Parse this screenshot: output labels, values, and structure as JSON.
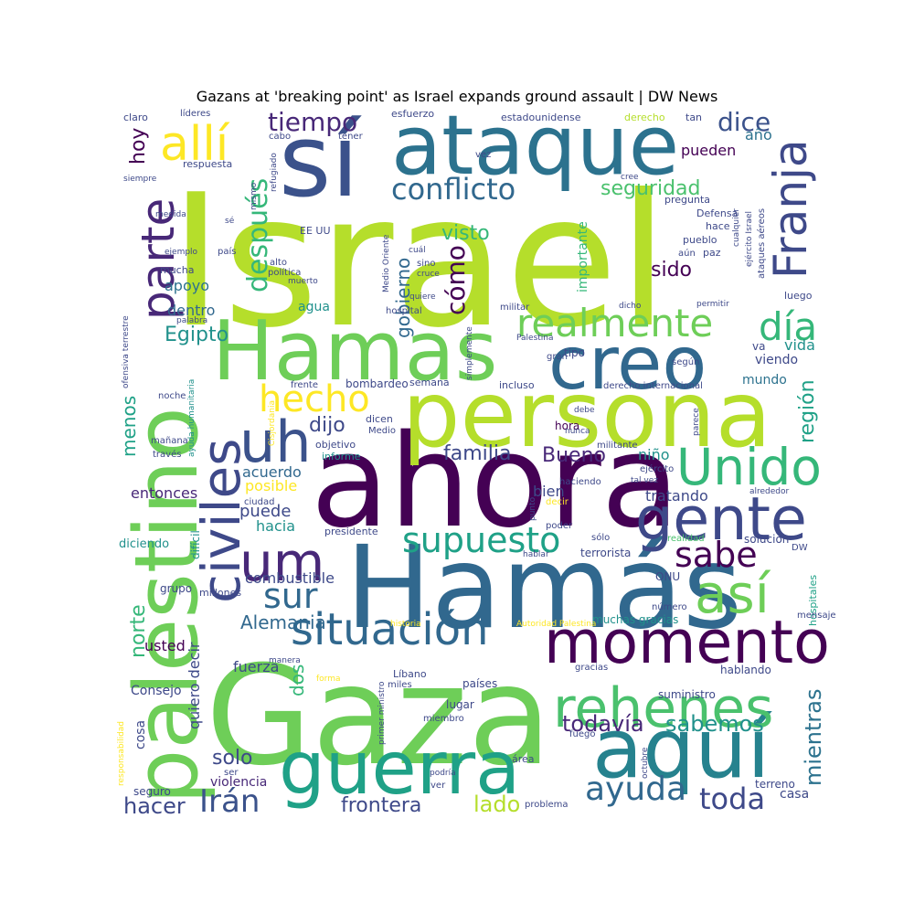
{
  "title": "Gazans at 'breaking point' as Israel expands ground assault | DW News",
  "words": [
    {
      "text": "Israel",
      "color": "#b5de2b"
    },
    {
      "text": "ahora",
      "color": "#440154"
    },
    {
      "text": "Gaza",
      "color": "#6ece58"
    },
    {
      "text": "Hamás",
      "color": "#31688e"
    },
    {
      "text": "persona",
      "color": "#b5de2b"
    },
    {
      "text": "palestino",
      "color": "#6ece58"
    },
    {
      "text": "sí",
      "color": "#3b528b"
    },
    {
      "text": "ataque",
      "color": "#2c728e"
    },
    {
      "text": "Hamas",
      "color": "#6ece58"
    },
    {
      "text": "guerra",
      "color": "#1fa187"
    },
    {
      "text": "aquí",
      "color": "#26828e"
    },
    {
      "text": "creo",
      "color": "#31688e"
    },
    {
      "text": "gente",
      "color": "#3e4989"
    },
    {
      "text": "momento",
      "color": "#440154"
    },
    {
      "text": "civiles",
      "color": "#3e4989"
    },
    {
      "text": "rehenes",
      "color": "#4ac16d"
    },
    {
      "text": "uh",
      "color": "#3b528b"
    },
    {
      "text": "um",
      "color": "#482878"
    },
    {
      "text": "Unido",
      "color": "#35b779"
    },
    {
      "text": "Franja",
      "color": "#3e4989"
    },
    {
      "text": "situación",
      "color": "#31688e"
    },
    {
      "text": "parte",
      "color": "#482878"
    },
    {
      "text": "así",
      "color": "#6ece58"
    },
    {
      "text": "allí",
      "color": "#fde725"
    },
    {
      "text": "realmente",
      "color": "#6ece58"
    },
    {
      "text": "día",
      "color": "#35b779"
    },
    {
      "text": "supuesto",
      "color": "#1fa187"
    },
    {
      "text": "hecho",
      "color": "#fde725"
    },
    {
      "text": "sabe",
      "color": "#440154"
    },
    {
      "text": "Irán",
      "color": "#3b528b"
    },
    {
      "text": "ayuda",
      "color": "#31688e"
    },
    {
      "text": "toda",
      "color": "#3e4989"
    },
    {
      "text": "sur",
      "color": "#31688e"
    },
    {
      "text": "conflicto",
      "color": "#31688e"
    },
    {
      "text": "tiempo",
      "color": "#482878"
    },
    {
      "text": "dice",
      "color": "#3b528b"
    },
    {
      "text": "después",
      "color": "#35b779"
    },
    {
      "text": "cómo",
      "color": "#440154"
    },
    {
      "text": "todavía",
      "color": "#482878"
    },
    {
      "text": "sabemos",
      "color": "#21918c"
    },
    {
      "text": "mientras",
      "color": "#2c728e"
    },
    {
      "text": "frontera",
      "color": "#3e4989"
    },
    {
      "text": "hacer",
      "color": "#3e4989"
    },
    {
      "text": "solo",
      "color": "#3e4989"
    },
    {
      "text": "lado",
      "color": "#b5de2b"
    },
    {
      "text": "familia",
      "color": "#3e4989"
    },
    {
      "text": "Bueno",
      "color": "#482878"
    },
    {
      "text": "dijo",
      "color": "#3e4989"
    },
    {
      "text": "seguridad",
      "color": "#4ac16d"
    },
    {
      "text": "Egipto",
      "color": "#21918c"
    },
    {
      "text": "región",
      "color": "#1fa187"
    },
    {
      "text": "norte",
      "color": "#35b779"
    },
    {
      "text": "Alemania",
      "color": "#31688e"
    },
    {
      "text": "hoy",
      "color": "#440154"
    },
    {
      "text": "gobierno",
      "color": "#31688e"
    },
    {
      "text": "visto",
      "color": "#35b779"
    },
    {
      "text": "sido",
      "color": "#440154"
    },
    {
      "text": "pueden",
      "color": "#440154"
    },
    {
      "text": "año",
      "color": "#2c728e"
    },
    {
      "text": "menos",
      "color": "#1fa187"
    },
    {
      "text": "dos",
      "color": "#35b779"
    },
    {
      "text": "posible",
      "color": "#fde725"
    },
    {
      "text": "acuerdo",
      "color": "#31688e"
    },
    {
      "text": "puede",
      "color": "#3e4989"
    },
    {
      "text": "hacia",
      "color": "#21918c"
    },
    {
      "text": "entonces",
      "color": "#482878"
    },
    {
      "text": "combustible",
      "color": "#3e4989"
    },
    {
      "text": "niño",
      "color": "#21918c"
    },
    {
      "text": "bien",
      "color": "#3e4989"
    },
    {
      "text": "tratando",
      "color": "#3e4989"
    },
    {
      "text": "fuerza",
      "color": "#3e4989"
    },
    {
      "text": "quiero decir",
      "color": "#3e4989"
    },
    {
      "text": "apoyo",
      "color": "#2c728e"
    },
    {
      "text": "dentro",
      "color": "#31688e"
    },
    {
      "text": "usted",
      "color": "#440154"
    },
    {
      "text": "Consejo",
      "color": "#3e4989"
    },
    {
      "text": "cosa",
      "color": "#3e4989"
    },
    {
      "text": "violencia",
      "color": "#482878"
    },
    {
      "text": "seguro",
      "color": "#3e4989"
    },
    {
      "text": "vida",
      "color": "#21918c"
    },
    {
      "text": "mundo",
      "color": "#2c728e"
    },
    {
      "text": "viendo",
      "color": "#3e4989"
    },
    {
      "text": "va",
      "color": "#3e4989"
    },
    {
      "text": "hora",
      "color": "#440154"
    },
    {
      "text": "agua",
      "color": "#21918c"
    },
    {
      "text": "importante",
      "color": "#35b779"
    },
    {
      "text": "lugar",
      "color": "#3e4989"
    },
    {
      "text": "países",
      "color": "#3e4989"
    },
    {
      "text": "hablando",
      "color": "#3e4989"
    },
    {
      "text": "suministro",
      "color": "#3e4989"
    },
    {
      "text": "terrorista",
      "color": "#3e4989"
    },
    {
      "text": "solución",
      "color": "#3e4989"
    },
    {
      "text": "casa",
      "color": "#3e4989"
    },
    {
      "text": "terreno",
      "color": "#3e4989"
    },
    {
      "text": "ONU",
      "color": "#3e4989"
    },
    {
      "text": "hospitales",
      "color": "#1fa187"
    },
    {
      "text": "diciendo",
      "color": "#21918c"
    },
    {
      "text": "difícil",
      "color": "#21918c"
    },
    {
      "text": "grupo",
      "color": "#3e4989"
    },
    {
      "text": "millones",
      "color": "#3e4989"
    },
    {
      "text": "noche",
      "color": "#3e4989"
    },
    {
      "text": "ayuda humanitaria",
      "color": "#21918c"
    },
    {
      "text": "Cisjordania",
      "color": "#fde725"
    },
    {
      "text": "frente",
      "color": "#3e4989"
    },
    {
      "text": "bombardeo",
      "color": "#3e4989"
    },
    {
      "text": "semana",
      "color": "#3e4989"
    },
    {
      "text": "incluso",
      "color": "#3e4989"
    },
    {
      "text": "derecho internacional",
      "color": "#3e4989"
    },
    {
      "text": "dicen",
      "color": "#3e4989"
    },
    {
      "text": "objetivo",
      "color": "#3e4989"
    },
    {
      "text": "informe",
      "color": "#21918c"
    },
    {
      "text": "Medio",
      "color": "#3e4989"
    },
    {
      "text": "presidente",
      "color": "#3e4989"
    },
    {
      "text": "ciudad",
      "color": "#3e4989"
    },
    {
      "text": "haciendo",
      "color": "#3e4989"
    },
    {
      "text": "decir",
      "color": "#fde725"
    },
    {
      "text": "punto",
      "color": "#3e4989"
    },
    {
      "text": "poder",
      "color": "#3e4989"
    },
    {
      "text": "realidad",
      "color": "#4ac16d"
    },
    {
      "text": "hablar",
      "color": "#3e4989"
    },
    {
      "text": "número",
      "color": "#3e4989"
    },
    {
      "text": "muchas gracias",
      "color": "#21918c"
    },
    {
      "text": "mensaje",
      "color": "#3e4989"
    },
    {
      "text": "historia",
      "color": "#fde725"
    },
    {
      "text": "Autoridad Palestina",
      "color": "#fde725"
    },
    {
      "text": "manera",
      "color": "#3e4989"
    },
    {
      "text": "Líbano",
      "color": "#3e4989"
    },
    {
      "text": "forma",
      "color": "#fde725"
    },
    {
      "text": "miles",
      "color": "#3e4989"
    },
    {
      "text": "primer ministro",
      "color": "#3e4989"
    },
    {
      "text": "miembro",
      "color": "#3e4989"
    },
    {
      "text": "gracias",
      "color": "#3e4989"
    },
    {
      "text": "fuego",
      "color": "#3e4989"
    },
    {
      "text": "área",
      "color": "#3e4989"
    },
    {
      "text": "octubre",
      "color": "#3e4989"
    },
    {
      "text": "podría",
      "color": "#3e4989"
    },
    {
      "text": "ver",
      "color": "#3e4989"
    },
    {
      "text": "problema",
      "color": "#3e4989"
    },
    {
      "text": "responsabilidad",
      "color": "#fde725"
    },
    {
      "text": "ser",
      "color": "#3e4989"
    },
    {
      "text": "mañana",
      "color": "#3e4989"
    },
    {
      "text": "través",
      "color": "#3e4989"
    },
    {
      "text": "palabra",
      "color": "#3e4989"
    },
    {
      "text": "ofensiva terrestre",
      "color": "#3e4989"
    },
    {
      "text": "claro",
      "color": "#3e4989"
    },
    {
      "text": "líderes",
      "color": "#3e4989"
    },
    {
      "text": "esfuerzo",
      "color": "#3e4989"
    },
    {
      "text": "estadounidense",
      "color": "#3e4989"
    },
    {
      "text": "derecho",
      "color": "#b5de2b"
    },
    {
      "text": "tan",
      "color": "#3e4989"
    },
    {
      "text": "cabo",
      "color": "#3e4989"
    },
    {
      "text": "tener",
      "color": "#3e4989"
    },
    {
      "text": "vez",
      "color": "#3e4989"
    },
    {
      "text": "respuesta",
      "color": "#3e4989"
    },
    {
      "text": "refugiado",
      "color": "#3e4989"
    },
    {
      "text": "siempre",
      "color": "#3e4989"
    },
    {
      "text": "mismo",
      "color": "#3e4989"
    },
    {
      "text": "medida",
      "color": "#3e4989"
    },
    {
      "text": "sé",
      "color": "#3e4989"
    },
    {
      "text": "país",
      "color": "#3e4989"
    },
    {
      "text": "ejemplo",
      "color": "#3e4989"
    },
    {
      "text": "mucha",
      "color": "#3e4989"
    },
    {
      "text": "alto",
      "color": "#3e4989"
    },
    {
      "text": "política",
      "color": "#3e4989"
    },
    {
      "text": "muerto",
      "color": "#3e4989"
    },
    {
      "text": "EE UU",
      "color": "#3e4989"
    },
    {
      "text": "Medio Oriente",
      "color": "#3e4989"
    },
    {
      "text": "cuál",
      "color": "#3e4989"
    },
    {
      "text": "sino",
      "color": "#3e4989"
    },
    {
      "text": "cruce",
      "color": "#3e4989"
    },
    {
      "text": "quiere",
      "color": "#3e4989"
    },
    {
      "text": "pregunta",
      "color": "#3e4989"
    },
    {
      "text": "Defensa",
      "color": "#3e4989"
    },
    {
      "text": "hace",
      "color": "#3e4989"
    },
    {
      "text": "pueblo",
      "color": "#3e4989"
    },
    {
      "text": "aún",
      "color": "#3e4989"
    },
    {
      "text": "paz",
      "color": "#3e4989"
    },
    {
      "text": "cualquier",
      "color": "#3e4989"
    },
    {
      "text": "ejército Israel",
      "color": "#3e4989"
    },
    {
      "text": "ataques aéreos",
      "color": "#3e4989"
    },
    {
      "text": "cree",
      "color": "#3e4989"
    },
    {
      "text": "militar",
      "color": "#3e4989"
    },
    {
      "text": "dicho",
      "color": "#3e4989"
    },
    {
      "text": "permitir",
      "color": "#3e4989"
    },
    {
      "text": "luego",
      "color": "#3e4989"
    },
    {
      "text": "hospital",
      "color": "#3e4989"
    },
    {
      "text": "Palestina",
      "color": "#3e4989"
    },
    {
      "text": "simplemente",
      "color": "#3e4989"
    },
    {
      "text": "gran",
      "color": "#3e4989"
    },
    {
      "text": "tipo",
      "color": "#3e4989"
    },
    {
      "text": "según",
      "color": "#3e4989"
    },
    {
      "text": "debe",
      "color": "#3e4989"
    },
    {
      "text": "nunca",
      "color": "#3e4989"
    },
    {
      "text": "parece",
      "color": "#3e4989"
    },
    {
      "text": "militante",
      "color": "#3e4989"
    },
    {
      "text": "ejército",
      "color": "#3e4989"
    },
    {
      "text": "tal vez",
      "color": "#3e4989"
    },
    {
      "text": "alrededor",
      "color": "#3e4989"
    },
    {
      "text": "sólo",
      "color": "#3e4989"
    },
    {
      "text": "DW",
      "color": "#3e4989"
    }
  ]
}
